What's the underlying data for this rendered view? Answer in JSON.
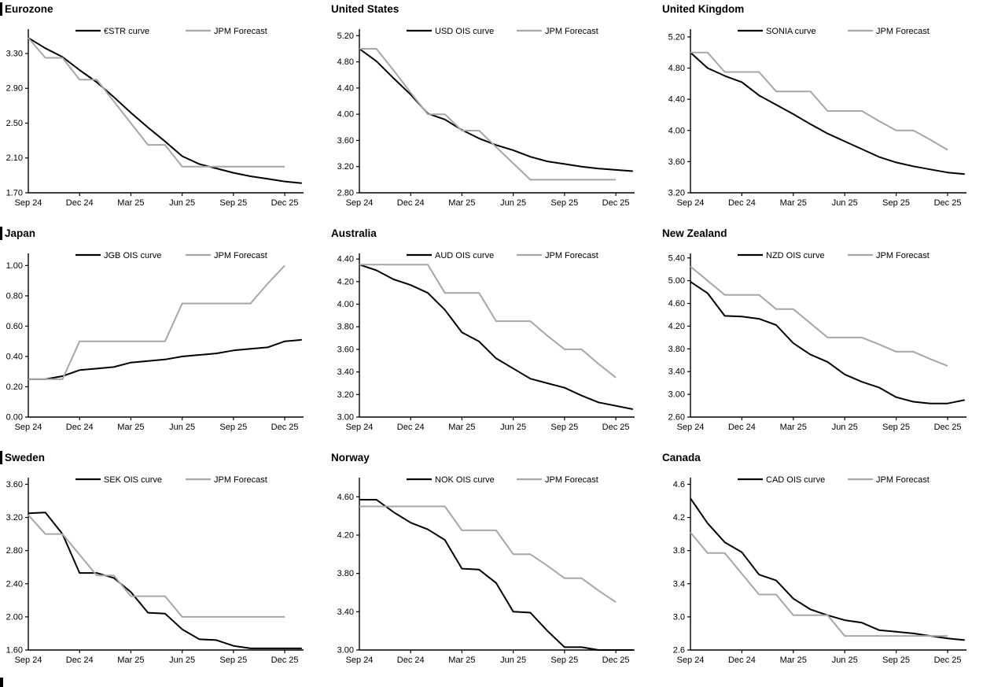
{
  "page": {
    "background": "#ffffff"
  },
  "colors": {
    "series_black": "#000000",
    "series_gray": "#a6a6a6",
    "axis": "#000000"
  },
  "chart_data": [
    {
      "type": "line",
      "title": "Eurozone",
      "left_bar": true,
      "x_tick_labels": [
        "Sep 24",
        "Dec 24",
        "Mar 25",
        "Jun 25",
        "Sep 25",
        "Dec 25"
      ],
      "x_tick_months": [
        0,
        3,
        6,
        9,
        12,
        15
      ],
      "ylim": [
        1.7,
        3.58
      ],
      "y_ticks": [
        "1.70",
        "2.10",
        "2.50",
        "2.90",
        "3.30"
      ],
      "legend_position": "top-inside",
      "series": [
        {
          "name": "€STR curve",
          "color_key": "series_black",
          "values": [
            3.48,
            3.36,
            3.26,
            3.11,
            2.97,
            2.8,
            2.62,
            2.45,
            2.29,
            2.12,
            2.03,
            1.98,
            1.93,
            1.89,
            1.86,
            1.83,
            1.81
          ]
        },
        {
          "name": "JPM Forecast",
          "color_key": "series_gray",
          "values": [
            3.48,
            3.25,
            3.25,
            3.0,
            3.0,
            2.75,
            2.5,
            2.25,
            2.25,
            2.0,
            2.0,
            2.0,
            2.0,
            2.0,
            2.0,
            2.0
          ]
        }
      ]
    },
    {
      "type": "line",
      "title": "United States",
      "left_bar": false,
      "x_tick_labels": [
        "Sep 24",
        "Dec 24",
        "Mar 25",
        "Jun 25",
        "Sep 25",
        "Dec 25"
      ],
      "x_tick_months": [
        0,
        3,
        6,
        9,
        12,
        15
      ],
      "ylim": [
        2.8,
        5.3
      ],
      "y_ticks": [
        "2.80",
        "3.20",
        "3.60",
        "4.00",
        "4.40",
        "4.80",
        "5.20"
      ],
      "legend_position": "top-inside",
      "series": [
        {
          "name": "USD OIS curve",
          "color_key": "series_black",
          "values": [
            5.0,
            4.81,
            4.55,
            4.3,
            4.01,
            3.92,
            3.76,
            3.63,
            3.53,
            3.45,
            3.35,
            3.28,
            3.24,
            3.2,
            3.17,
            3.15,
            3.13
          ]
        },
        {
          "name": "JPM Forecast",
          "color_key": "series_gray",
          "values": [
            5.0,
            5.0,
            4.67,
            4.33,
            4.0,
            4.0,
            3.75,
            3.75,
            3.5,
            3.25,
            3.0,
            3.0,
            3.0,
            3.0,
            3.0,
            3.0
          ]
        }
      ]
    },
    {
      "type": "line",
      "title": "United Kingdom",
      "left_bar": false,
      "x_tick_labels": [
        "Sep 24",
        "Dec 24",
        "Mar 25",
        "Jun 25",
        "Sep 25",
        "Dec 25"
      ],
      "x_tick_months": [
        0,
        3,
        6,
        9,
        12,
        15
      ],
      "ylim": [
        3.2,
        5.3
      ],
      "y_ticks": [
        "3.20",
        "3.60",
        "4.00",
        "4.40",
        "4.80",
        "5.20"
      ],
      "legend_position": "top-inside",
      "series": [
        {
          "name": "SONIA curve",
          "color_key": "series_black",
          "values": [
            5.0,
            4.8,
            4.7,
            4.62,
            4.45,
            4.33,
            4.21,
            4.08,
            3.96,
            3.86,
            3.76,
            3.66,
            3.59,
            3.54,
            3.5,
            3.46,
            3.44
          ]
        },
        {
          "name": "JPM Forecast",
          "color_key": "series_gray",
          "values": [
            5.0,
            5.0,
            4.75,
            4.75,
            4.75,
            4.5,
            4.5,
            4.5,
            4.25,
            4.25,
            4.25,
            4.12,
            4.0,
            4.0,
            3.88,
            3.75
          ]
        }
      ]
    },
    {
      "type": "line",
      "title": "Japan",
      "left_bar": true,
      "x_tick_labels": [
        "Sep 24",
        "Dec 24",
        "Mar 25",
        "Jun 25",
        "Sep 25",
        "Dec 25"
      ],
      "x_tick_months": [
        0,
        3,
        6,
        9,
        12,
        15
      ],
      "ylim": [
        0.0,
        1.08
      ],
      "y_ticks": [
        "0.00",
        "0.20",
        "0.40",
        "0.60",
        "0.80",
        "1.00"
      ],
      "legend_position": "top-inside",
      "series": [
        {
          "name": "JGB OIS curve",
          "color_key": "series_black",
          "values": [
            0.25,
            0.25,
            0.27,
            0.31,
            0.32,
            0.33,
            0.36,
            0.37,
            0.38,
            0.4,
            0.41,
            0.42,
            0.44,
            0.45,
            0.46,
            0.5,
            0.51
          ]
        },
        {
          "name": "JPM Forecast",
          "color_key": "series_gray",
          "values": [
            0.25,
            0.25,
            0.25,
            0.5,
            0.5,
            0.5,
            0.5,
            0.5,
            0.5,
            0.75,
            0.75,
            0.75,
            0.75,
            0.75,
            0.88,
            1.0
          ]
        }
      ]
    },
    {
      "type": "line",
      "title": "Australia",
      "left_bar": false,
      "x_tick_labels": [
        "Sep 24",
        "Dec 24",
        "Mar 25",
        "Jun 25",
        "Sep 25",
        "Dec 25"
      ],
      "x_tick_months": [
        0,
        3,
        6,
        9,
        12,
        15
      ],
      "ylim": [
        3.0,
        4.45
      ],
      "y_ticks": [
        "3.00",
        "3.20",
        "3.40",
        "3.60",
        "3.80",
        "4.00",
        "4.20",
        "4.40"
      ],
      "legend_position": "top-inside",
      "series": [
        {
          "name": "AUD OIS curve",
          "color_key": "series_black",
          "values": [
            4.35,
            4.3,
            4.22,
            4.17,
            4.1,
            3.95,
            3.75,
            3.67,
            3.52,
            3.43,
            3.34,
            3.3,
            3.26,
            3.19,
            3.13,
            3.1,
            3.07
          ]
        },
        {
          "name": "JPM Forecast",
          "color_key": "series_gray",
          "values": [
            4.35,
            4.35,
            4.35,
            4.35,
            4.35,
            4.1,
            4.1,
            4.1,
            3.85,
            3.85,
            3.85,
            3.72,
            3.6,
            3.6,
            3.47,
            3.35
          ]
        }
      ]
    },
    {
      "type": "line",
      "title": "New Zealand",
      "left_bar": false,
      "x_tick_labels": [
        "Sep 24",
        "Dec 24",
        "Mar 25",
        "Jun 25",
        "Sep 25",
        "Dec 25"
      ],
      "x_tick_months": [
        0,
        3,
        6,
        9,
        12,
        15
      ],
      "ylim": [
        2.6,
        5.48
      ],
      "y_ticks": [
        "2.60",
        "3.00",
        "3.40",
        "3.80",
        "4.20",
        "4.60",
        "5.00",
        "5.40"
      ],
      "legend_position": "top-inside",
      "series": [
        {
          "name": "NZD OIS curve",
          "color_key": "series_black",
          "values": [
            4.98,
            4.78,
            4.38,
            4.37,
            4.33,
            4.22,
            3.9,
            3.7,
            3.57,
            3.35,
            3.22,
            3.12,
            2.95,
            2.87,
            2.84,
            2.84,
            2.9
          ]
        },
        {
          "name": "JPM Forecast",
          "color_key": "series_gray",
          "values": [
            5.25,
            5.0,
            4.75,
            4.75,
            4.75,
            4.5,
            4.5,
            4.25,
            4.0,
            4.0,
            4.0,
            3.88,
            3.75,
            3.75,
            3.62,
            3.5
          ]
        }
      ]
    },
    {
      "type": "line",
      "title": "Sweden",
      "left_bar": true,
      "x_tick_labels": [
        "Sep 24",
        "Dec 24",
        "Mar 25",
        "Jun 25",
        "Sep 25",
        "Dec 25"
      ],
      "x_tick_months": [
        0,
        3,
        6,
        9,
        12,
        15
      ],
      "ylim": [
        1.6,
        3.68
      ],
      "y_ticks": [
        "1.60",
        "2.00",
        "2.40",
        "2.80",
        "3.20",
        "3.60"
      ],
      "legend_position": "top-inside",
      "series": [
        {
          "name": "SEK OIS curve",
          "color_key": "series_black",
          "values": [
            3.25,
            3.26,
            3.0,
            2.53,
            2.53,
            2.47,
            2.3,
            2.05,
            2.04,
            1.85,
            1.73,
            1.72,
            1.65,
            1.62,
            1.62,
            1.62,
            1.62
          ]
        },
        {
          "name": "JPM Forecast",
          "color_key": "series_gray",
          "values": [
            3.23,
            3.0,
            3.0,
            2.75,
            2.5,
            2.5,
            2.25,
            2.25,
            2.25,
            2.0,
            2.0,
            2.0,
            2.0,
            2.0,
            2.0,
            2.0
          ]
        }
      ]
    },
    {
      "type": "line",
      "title": "Norway",
      "left_bar": false,
      "x_tick_labels": [
        "Sep 24",
        "Dec 24",
        "Mar 25",
        "Jun 25",
        "Sep 25",
        "Dec 25"
      ],
      "x_tick_months": [
        0,
        3,
        6,
        9,
        12,
        15
      ],
      "ylim": [
        3.0,
        4.8
      ],
      "y_ticks": [
        "3.00",
        "3.40",
        "3.80",
        "4.20",
        "4.60"
      ],
      "legend_position": "top-inside",
      "series": [
        {
          "name": "NOK OIS curve",
          "color_key": "series_black",
          "values": [
            4.57,
            4.57,
            4.44,
            4.33,
            4.26,
            4.15,
            3.85,
            3.84,
            3.7,
            3.4,
            3.39,
            3.2,
            3.03,
            3.03,
            3.0,
            3.0,
            3.0
          ]
        },
        {
          "name": "JPM Forecast",
          "color_key": "series_gray",
          "values": [
            4.5,
            4.5,
            4.5,
            4.5,
            4.5,
            4.5,
            4.25,
            4.25,
            4.25,
            4.0,
            4.0,
            3.88,
            3.75,
            3.75,
            3.62,
            3.5
          ]
        }
      ]
    },
    {
      "type": "line",
      "title": "Canada",
      "left_bar": false,
      "x_tick_labels": [
        "Sep 24",
        "Dec 24",
        "Mar 25",
        "Jun 25",
        "Sep 25",
        "Dec 25"
      ],
      "x_tick_months": [
        0,
        3,
        6,
        9,
        12,
        15
      ],
      "ylim": [
        2.6,
        4.68
      ],
      "y_ticks": [
        "2.6",
        "3.0",
        "3.4",
        "3.8",
        "4.2",
        "4.6"
      ],
      "legend_position": "top-inside",
      "series": [
        {
          "name": "CAD OIS curve",
          "color_key": "series_black",
          "values": [
            4.43,
            4.13,
            3.9,
            3.78,
            3.51,
            3.44,
            3.22,
            3.09,
            3.02,
            2.96,
            2.93,
            2.84,
            2.82,
            2.8,
            2.77,
            2.74,
            2.72
          ]
        },
        {
          "name": "JPM Forecast",
          "color_key": "series_gray",
          "values": [
            4.02,
            3.77,
            3.77,
            3.52,
            3.27,
            3.27,
            3.02,
            3.02,
            3.02,
            2.77,
            2.77,
            2.77,
            2.77,
            2.77,
            2.77,
            2.77
          ]
        }
      ]
    }
  ]
}
